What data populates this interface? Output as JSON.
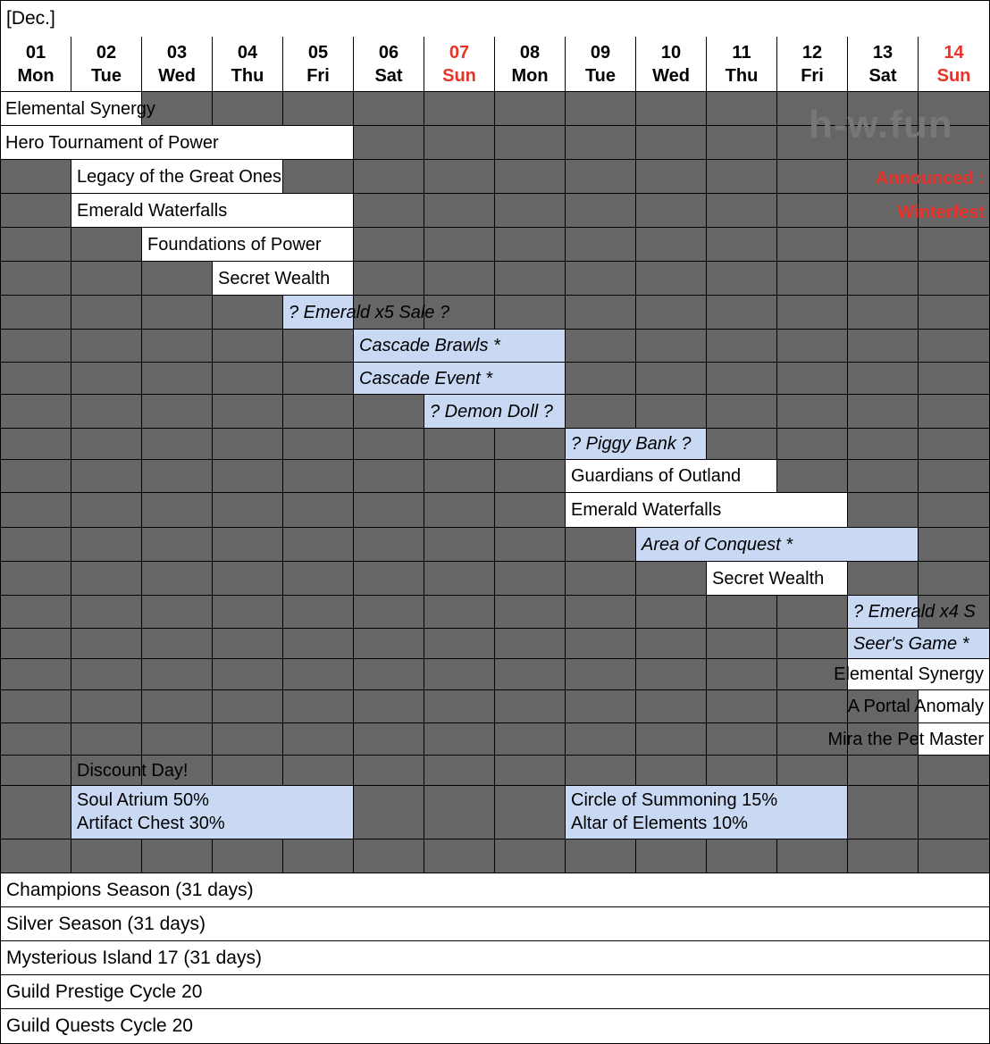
{
  "title": "[Dec.]",
  "watermark": "h-w.fun",
  "announcement": {
    "line1": "Announced :",
    "line2": "Winterfest"
  },
  "colors": {
    "gray": "#666666",
    "blue": "#c9d9f4",
    "sunday": "#e8332a"
  },
  "days": [
    {
      "num": "01",
      "wd": "Mon",
      "sun": false
    },
    {
      "num": "02",
      "wd": "Tue",
      "sun": false
    },
    {
      "num": "03",
      "wd": "Wed",
      "sun": false
    },
    {
      "num": "04",
      "wd": "Thu",
      "sun": false
    },
    {
      "num": "05",
      "wd": "Fri",
      "sun": false
    },
    {
      "num": "06",
      "wd": "Sat",
      "sun": false
    },
    {
      "num": "07",
      "wd": "Sun",
      "sun": true
    },
    {
      "num": "08",
      "wd": "Mon",
      "sun": false
    },
    {
      "num": "09",
      "wd": "Tue",
      "sun": false
    },
    {
      "num": "10",
      "wd": "Wed",
      "sun": false
    },
    {
      "num": "11",
      "wd": "Thu",
      "sun": false
    },
    {
      "num": "12",
      "wd": "Fri",
      "sun": false
    },
    {
      "num": "13",
      "wd": "Sat",
      "sun": false
    },
    {
      "num": "14",
      "wd": "Sun",
      "sun": true
    }
  ],
  "events": [
    {
      "label": "Elemental Synergy",
      "row": 0,
      "start": 1,
      "end": 2,
      "style": "white"
    },
    {
      "label": "Hero Tournament of Power",
      "row": 1,
      "start": 1,
      "end": 5,
      "style": "white"
    },
    {
      "label": "Legacy of the Great Ones",
      "row": 2,
      "start": 2,
      "end": 4,
      "style": "white"
    },
    {
      "label": "Emerald Waterfalls",
      "row": 3,
      "start": 2,
      "end": 5,
      "style": "white"
    },
    {
      "label": "Foundations of Power",
      "row": 4,
      "start": 3,
      "end": 5,
      "style": "white"
    },
    {
      "label": "Secret Wealth",
      "row": 5,
      "start": 4,
      "end": 5,
      "style": "white"
    },
    {
      "label": "? Emerald x5 Sale ?",
      "row": 6,
      "start": 5,
      "end": 5,
      "style": "blue"
    },
    {
      "label": "Cascade Brawls *",
      "row": 7,
      "start": 6,
      "end": 8,
      "style": "blue"
    },
    {
      "label": "Cascade Event *",
      "row": 8,
      "start": 6,
      "end": 8,
      "style": "blue"
    },
    {
      "label": "? Demon Doll ?",
      "row": 9,
      "start": 7,
      "end": 8,
      "style": "blue"
    },
    {
      "label": "? Piggy Bank ?",
      "row": 10,
      "start": 9,
      "end": 10,
      "style": "blue"
    },
    {
      "label": "Guardians of Outland",
      "row": 11,
      "start": 9,
      "end": 11,
      "style": "white"
    },
    {
      "label": "Emerald Waterfalls",
      "row": 12,
      "start": 9,
      "end": 12,
      "style": "white"
    },
    {
      "label": "Area of Conquest *",
      "row": 13,
      "start": 10,
      "end": 13,
      "style": "blue"
    },
    {
      "label": "Secret Wealth",
      "row": 14,
      "start": 11,
      "end": 12,
      "style": "white"
    },
    {
      "label": "? Emerald x4 S",
      "row": 15,
      "start": 13,
      "end": 13,
      "style": "blue"
    },
    {
      "label": "Seer's Game *",
      "row": 16,
      "start": 13,
      "end": 14,
      "style": "blue"
    },
    {
      "label": "Elemental Synergy",
      "row": 17,
      "start": 13,
      "end": 14,
      "style": "white"
    },
    {
      "label": "A Portal Anomaly",
      "row": 18,
      "start": 14,
      "end": 14,
      "style": "white"
    },
    {
      "label": "Mira the Pet Master",
      "row": 19,
      "start": 14,
      "end": 14,
      "style": "white"
    },
    {
      "label": "Discount Day!",
      "row": 20,
      "start": 2,
      "end": 2,
      "style": "clear"
    },
    {
      "label": "Soul Atrium 50%\nArtifact Chest 30%",
      "row": 21,
      "start": 2,
      "end": 5,
      "style": "blue-multi"
    },
    {
      "label": "Circle of Summoning 15%\nAltar of Elements 10%",
      "row": 21,
      "start": 9,
      "end": 12,
      "style": "blue-multi"
    }
  ],
  "seasons": [
    "Champions Season (31 days)",
    "Silver Season (31 days)",
    "Mysterious Island 17 (31 days)",
    "Guild Prestige Cycle 20",
    "Guild Quests Cycle 20"
  ]
}
